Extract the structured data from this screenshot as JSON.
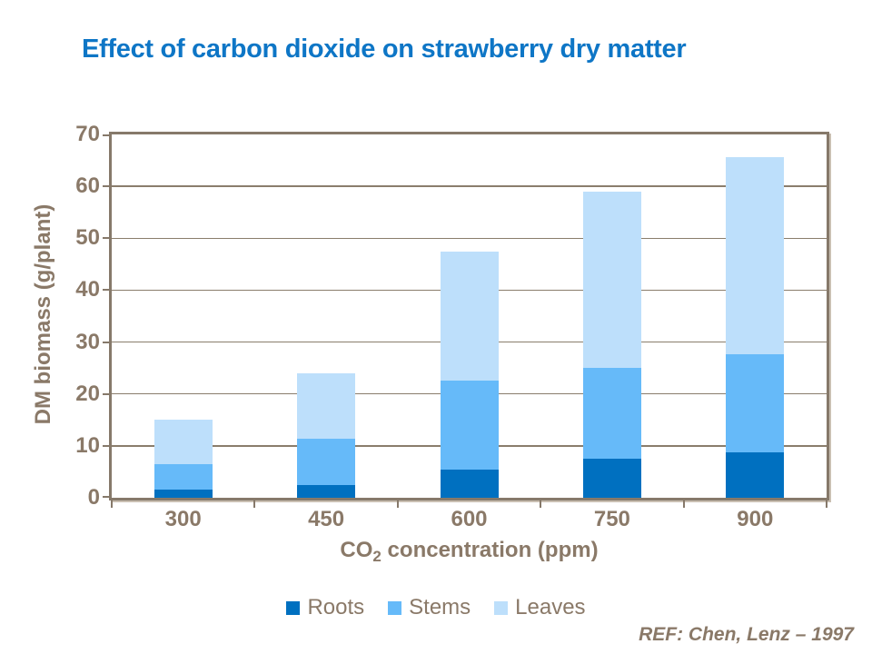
{
  "header": {
    "title": "Effect of carbon dioxide on strawberry dry matter",
    "title_color": "#0e76c6"
  },
  "footer": {
    "ref": "REF: Chen, Lenz – 1997"
  },
  "colors": {
    "axis_text": "#8a7968",
    "axis_frame": "#86796a",
    "gridline": "#8a7d6c"
  },
  "chart_data": {
    "type": "bar",
    "stacked": true,
    "categories": [
      "300",
      "450",
      "600",
      "750",
      "900"
    ],
    "series": [
      {
        "name": "Roots",
        "color": "#0070c0",
        "values": [
          1.5,
          2.5,
          5.5,
          7.5,
          8.7
        ]
      },
      {
        "name": "Stems",
        "color": "#66baf9",
        "values": [
          5.0,
          8.8,
          17.0,
          17.5,
          19.0
        ]
      },
      {
        "name": "Leaves",
        "color": "#bddffb",
        "values": [
          8.5,
          12.7,
          25.0,
          34.0,
          38.0
        ]
      }
    ],
    "bar_totals": [
      15,
      24,
      47.5,
      59,
      65.7
    ],
    "ylabel": "DM biomass (g/plant)",
    "xlabel": {
      "prefix": "CO",
      "sub": "2",
      "suffix": " concentration (ppm)"
    },
    "ylim": [
      0,
      70
    ],
    "yticks": [
      0,
      10,
      20,
      30,
      40,
      50,
      60,
      70
    ],
    "grid": true,
    "legend_position": "bottom"
  }
}
